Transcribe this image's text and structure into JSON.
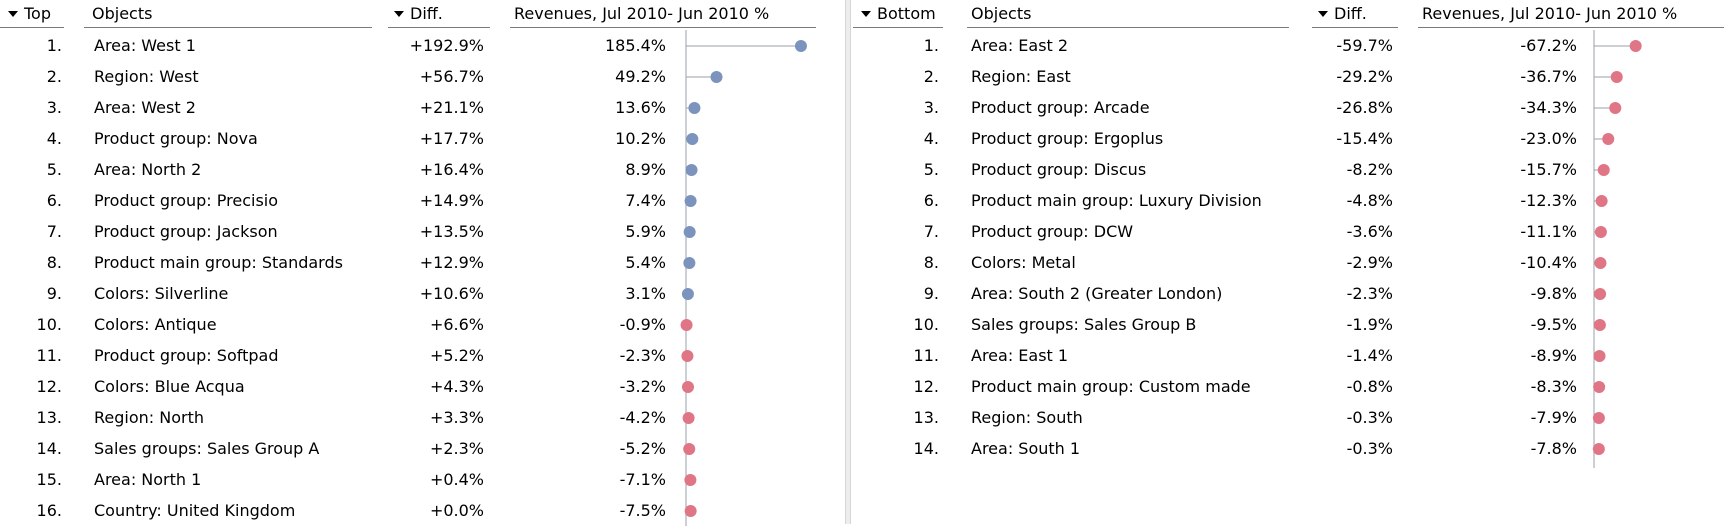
{
  "top": {
    "rank_header": "Top",
    "objects_header": "Objects",
    "diff_header": "Diff.",
    "revenue_header": "Revenues, Jul 2010-  Jun 2010 %",
    "rows": [
      {
        "rank": "1.",
        "object": "Area: West 1",
        "diff": "+192.9%",
        "revenue": "185.4%"
      },
      {
        "rank": "2.",
        "object": "Region: West",
        "diff": "+56.7%",
        "revenue": "49.2%"
      },
      {
        "rank": "3.",
        "object": "Area: West 2",
        "diff": "+21.1%",
        "revenue": "13.6%"
      },
      {
        "rank": "4.",
        "object": "Product group: Nova",
        "diff": "+17.7%",
        "revenue": "10.2%"
      },
      {
        "rank": "5.",
        "object": "Area: North 2",
        "diff": "+16.4%",
        "revenue": "8.9%"
      },
      {
        "rank": "6.",
        "object": "Product group: Precisio",
        "diff": "+14.9%",
        "revenue": "7.4%"
      },
      {
        "rank": "7.",
        "object": "Product group: Jackson",
        "diff": "+13.5%",
        "revenue": "5.9%"
      },
      {
        "rank": "8.",
        "object": "Product main group: Standards",
        "diff": "+12.9%",
        "revenue": "5.4%"
      },
      {
        "rank": "9.",
        "object": "Colors: Silverline",
        "diff": "+10.6%",
        "revenue": "3.1%"
      },
      {
        "rank": "10.",
        "object": "Colors: Antique",
        "diff": "+6.6%",
        "revenue": "-0.9%"
      },
      {
        "rank": "11.",
        "object": "Product group: Softpad",
        "diff": "+5.2%",
        "revenue": "-2.3%"
      },
      {
        "rank": "12.",
        "object": "Colors: Blue Acqua",
        "diff": "+4.3%",
        "revenue": "-3.2%"
      },
      {
        "rank": "13.",
        "object": "Region: North",
        "diff": "+3.3%",
        "revenue": "-4.2%"
      },
      {
        "rank": "14.",
        "object": "Sales groups: Sales Group A",
        "diff": "+2.3%",
        "revenue": "-5.2%"
      },
      {
        "rank": "15.",
        "object": "Area: North 1",
        "diff": "+0.4%",
        "revenue": "-7.1%"
      },
      {
        "rank": "16.",
        "object": "Country: United Kingdom",
        "diff": "+0.0%",
        "revenue": "-7.5%"
      }
    ]
  },
  "bottom": {
    "rank_header": "Bottom",
    "objects_header": "Objects",
    "diff_header": "Diff.",
    "revenue_header": "Revenues, Jul 2010-  Jun 2010 %",
    "rows": [
      {
        "rank": "1.",
        "object": "Area: East 2",
        "diff": "-59.7%",
        "revenue": "-67.2%"
      },
      {
        "rank": "2.",
        "object": "Region: East",
        "diff": "-29.2%",
        "revenue": "-36.7%"
      },
      {
        "rank": "3.",
        "object": "Product group: Arcade",
        "diff": "-26.8%",
        "revenue": "-34.3%"
      },
      {
        "rank": "4.",
        "object": "Product group: Ergoplus",
        "diff": "-15.4%",
        "revenue": "-23.0%"
      },
      {
        "rank": "5.",
        "object": "Product group: Discus",
        "diff": "-8.2%",
        "revenue": "-15.7%"
      },
      {
        "rank": "6.",
        "object": "Product main group: Luxury Division",
        "diff": "-4.8%",
        "revenue": "-12.3%"
      },
      {
        "rank": "7.",
        "object": "Product group: DCW",
        "diff": "-3.6%",
        "revenue": "-11.1%"
      },
      {
        "rank": "8.",
        "object": "Colors: Metal",
        "diff": "-2.9%",
        "revenue": "-10.4%"
      },
      {
        "rank": "9.",
        "object": "Area: South 2 (Greater London)",
        "diff": "-2.3%",
        "revenue": "-9.8%"
      },
      {
        "rank": "10.",
        "object": "Sales groups: Sales Group B",
        "diff": "-1.9%",
        "revenue": "-9.5%"
      },
      {
        "rank": "11.",
        "object": "Area: East 1",
        "diff": "-1.4%",
        "revenue": "-8.9%"
      },
      {
        "rank": "12.",
        "object": "Product main group: Custom made",
        "diff": "-0.8%",
        "revenue": "-8.3%"
      },
      {
        "rank": "13.",
        "object": "Region: South",
        "diff": "-0.3%",
        "revenue": "-7.9%"
      },
      {
        "rank": "14.",
        "object": "Area: South 1",
        "diff": "-0.3%",
        "revenue": "-7.8%"
      }
    ]
  },
  "colors": {
    "positive_dot": "#7b93bd",
    "negative_dot": "#e07585",
    "stem": "#9aa0a8",
    "axis": "#9aa0a8"
  },
  "chart_data": [
    {
      "type": "scatter",
      "title": "Top",
      "categories": [
        "Area: West 1",
        "Region: West",
        "Area: West 2",
        "Product group: Nova",
        "Area: North 2",
        "Product group: Precisio",
        "Product group: Jackson",
        "Product main group: Standards",
        "Colors: Silverline",
        "Colors: Antique",
        "Product group: Softpad",
        "Colors: Blue Acqua",
        "Region: North",
        "Sales groups: Sales Group A",
        "Area: North 1",
        "Country: United Kingdom"
      ],
      "series": [
        {
          "name": "Diff.",
          "values": [
            192.9,
            56.7,
            21.1,
            17.7,
            16.4,
            14.9,
            13.5,
            12.9,
            10.6,
            6.6,
            5.2,
            4.3,
            3.3,
            2.3,
            0.4,
            0.0
          ]
        },
        {
          "name": "Revenues, Jul 2010-  Jun 2010 %",
          "values": [
            185.4,
            49.2,
            13.6,
            10.2,
            8.9,
            7.4,
            5.9,
            5.4,
            3.1,
            -0.9,
            -2.3,
            -3.2,
            -4.2,
            -5.2,
            -7.1,
            -7.5
          ]
        }
      ]
    },
    {
      "type": "scatter",
      "title": "Bottom",
      "categories": [
        "Area: East 2",
        "Region: East",
        "Product group: Arcade",
        "Product group: Ergoplus",
        "Product group: Discus",
        "Product main group: Luxury Division",
        "Product group: DCW",
        "Colors: Metal",
        "Area: South 2 (Greater London)",
        "Sales groups: Sales Group B",
        "Area: East 1",
        "Product main group: Custom made",
        "Region: South",
        "Area: South 1"
      ],
      "series": [
        {
          "name": "Diff.",
          "values": [
            -59.7,
            -29.2,
            -26.8,
            -15.4,
            -8.2,
            -4.8,
            -3.6,
            -2.9,
            -2.3,
            -1.9,
            -1.4,
            -0.8,
            -0.3,
            -0.3
          ]
        },
        {
          "name": "Revenues, Jul 2010-  Jun 2010 %",
          "values": [
            -67.2,
            -36.7,
            -34.3,
            -23.0,
            -15.7,
            -12.3,
            -11.1,
            -10.4,
            -9.8,
            -9.5,
            -8.9,
            -8.3,
            -7.9,
            -7.8
          ]
        }
      ]
    }
  ]
}
